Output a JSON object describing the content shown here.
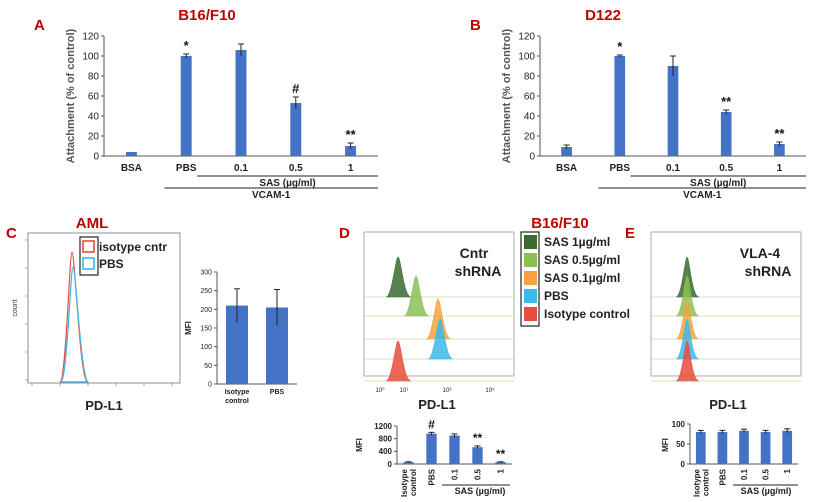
{
  "chart_data": [
    {
      "panel": "A",
      "panel_color": "#c00000",
      "type": "bar",
      "title": "B16/F10",
      "title_color": "#c00000",
      "ylabel": "Attachment (% of control)",
      "ylim": [
        0,
        120
      ],
      "yticks": [
        0,
        20,
        40,
        60,
        80,
        100,
        120
      ],
      "categories": [
        "BSA",
        "PBS",
        "0.1",
        "0.5",
        "1"
      ],
      "values": [
        4,
        100,
        106,
        53,
        10
      ],
      "errors": [
        0,
        2,
        6,
        6,
        3
      ],
      "annotations": [
        "",
        "*",
        "",
        "#",
        "**"
      ],
      "group_label": "SAS (µg/ml)",
      "group2_label": "VCAM-1",
      "bar_color": "#4472c4"
    },
    {
      "panel": "B",
      "panel_color": "#c00000",
      "type": "bar",
      "title": "D122",
      "title_color": "#c00000",
      "ylabel": "Attachment (% of control)",
      "ylim": [
        0,
        120
      ],
      "yticks": [
        0,
        20,
        40,
        60,
        80,
        100,
        120
      ],
      "categories": [
        "BSA",
        "PBS",
        "0.1",
        "0.5",
        "1"
      ],
      "values": [
        9,
        100,
        90,
        44,
        12
      ],
      "errors": [
        2,
        1,
        10,
        2,
        2
      ],
      "annotations": [
        "",
        "*",
        "",
        "**",
        "**"
      ],
      "group_label": "SAS (µg/ml)",
      "group2_label": "VCAM-1",
      "bar_color": "#4472c4"
    },
    {
      "panel": "C",
      "panel_color": "#c00000",
      "type": "histogram",
      "title": "AML",
      "title_color": "#c00000",
      "xlabel": "PD-L1",
      "ylabel": "count",
      "legend": [
        {
          "name": "isotype cntr",
          "color": "#e74c3c"
        },
        {
          "name": "PBS",
          "color": "#3db8e8"
        }
      ]
    },
    {
      "panel": "C-bar",
      "type": "bar",
      "ylabel": "MFI",
      "ylim": [
        0,
        300
      ],
      "yticks": [
        0,
        50,
        100,
        150,
        200,
        250,
        300
      ],
      "categories": [
        "Isotype control",
        "PBS"
      ],
      "values": [
        210,
        205
      ],
      "errors": [
        45,
        48
      ],
      "bar_color": "#4472c4"
    },
    {
      "panel": "D",
      "panel_color": "#c00000",
      "type": "histogram",
      "title": "B16/F10",
      "title_color": "#c00000",
      "annotation": "Cntr shRNA",
      "xlabel": "PD-L1",
      "xticks": [
        "10⁰",
        "10¹",
        "10³",
        "10⁵"
      ],
      "legend": [
        {
          "name": "SAS 1µg/ml",
          "color": "#3a6b2f"
        },
        {
          "name": "SAS 0.5µg/ml",
          "color": "#8cc152"
        },
        {
          "name": "SAS 0.1µg/ml",
          "color": "#f4a340"
        },
        {
          "name": "PBS",
          "color": "#3db8e8"
        },
        {
          "name": "Isotype control",
          "color": "#e74c3c"
        }
      ]
    },
    {
      "panel": "D-bar",
      "type": "bar",
      "ylabel": "MFI",
      "ylim": [
        0,
        1200
      ],
      "yticks": [
        0,
        400,
        800,
        1200
      ],
      "categories": [
        "Isotype control",
        "PBS",
        "0.1",
        "0.5",
        "1"
      ],
      "values": [
        60,
        960,
        900,
        530,
        60
      ],
      "errors": [
        10,
        40,
        50,
        40,
        10
      ],
      "annotations": [
        "",
        "#",
        "",
        "**",
        "**"
      ],
      "group_label": "SAS (µg/ml)",
      "bar_color": "#4472c4"
    },
    {
      "panel": "E",
      "panel_color": "#c00000",
      "type": "histogram",
      "annotation": "VLA-4 shRNA",
      "xlabel": "PD-L1"
    },
    {
      "panel": "E-bar",
      "type": "bar",
      "ylabel": "MFI",
      "ylim": [
        0,
        100
      ],
      "yticks": [
        0,
        50,
        100
      ],
      "categories": [
        "Isotype control",
        "PBS",
        "0.1",
        "0.5",
        "1"
      ],
      "values": [
        80,
        80,
        83,
        80,
        83
      ],
      "errors": [
        4,
        4,
        4,
        4,
        5
      ],
      "group_label": "SAS (µg/ml)",
      "bar_color": "#4472c4"
    }
  ]
}
